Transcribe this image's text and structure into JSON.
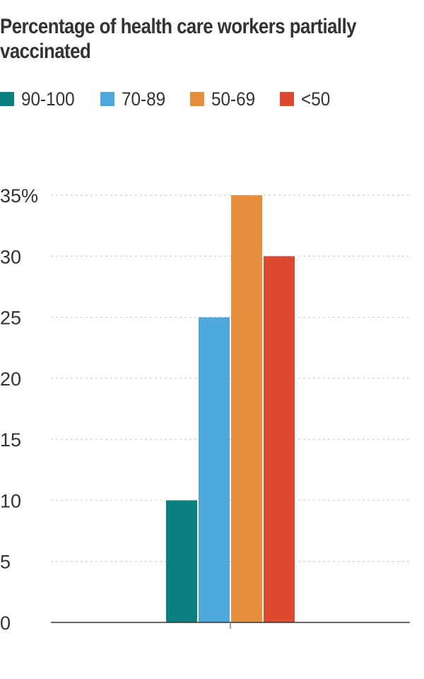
{
  "chart_data": {
    "type": "bar",
    "title": "Percentage of health care workers partially vaccinated",
    "xlabel": "",
    "ylabel": "",
    "categories": [
      ""
    ],
    "series": [
      {
        "name": "90-100",
        "values": [
          10
        ],
        "color": "#0a8080"
      },
      {
        "name": "70-89",
        "values": [
          25
        ],
        "color": "#4fa8dc"
      },
      {
        "name": "50-69",
        "values": [
          35
        ],
        "color": "#e58f3d"
      },
      {
        "name": "<50",
        "values": [
          30
        ],
        "color": "#dc4931"
      }
    ],
    "ylim": [
      0,
      35
    ],
    "yticks": [
      {
        "value": 0,
        "label": "0"
      },
      {
        "value": 5,
        "label": "5"
      },
      {
        "value": 10,
        "label": "10"
      },
      {
        "value": 15,
        "label": "15"
      },
      {
        "value": 20,
        "label": "20"
      },
      {
        "value": 25,
        "label": "25"
      },
      {
        "value": 30,
        "label": "30"
      },
      {
        "value": 35,
        "label": "35%"
      }
    ],
    "grid": true,
    "legend_position": "top-left"
  }
}
